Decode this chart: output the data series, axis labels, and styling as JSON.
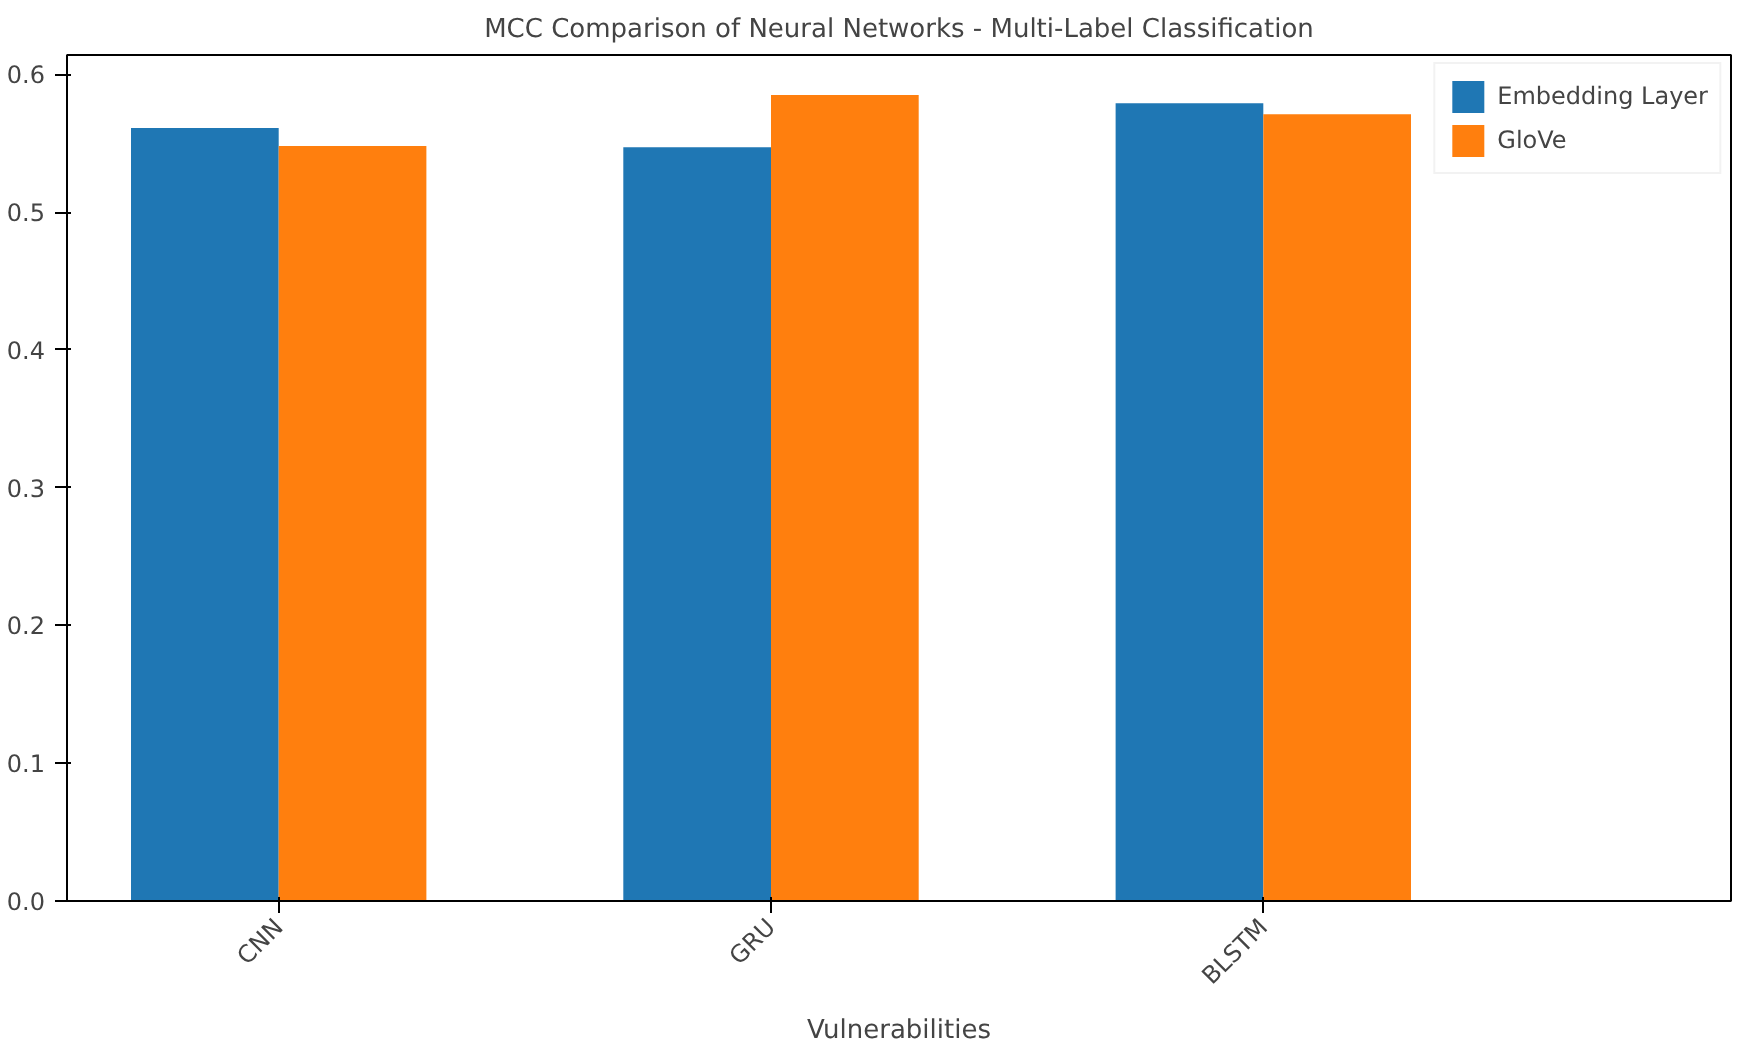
{
  "chart_data": {
    "type": "bar",
    "title": "MCC Comparison of Neural Networks - Multi-Label Classification",
    "xlabel": "Vulnerabilities",
    "categories": [
      "CNN",
      "GRU",
      "BLSTM"
    ],
    "series": [
      {
        "name": "Embedding Layer",
        "color": "#1f77b4",
        "values": [
          0.561,
          0.547,
          0.579
        ]
      },
      {
        "name": "GloVe",
        "color": "#ff7f0e",
        "values": [
          0.548,
          0.585,
          0.571
        ]
      }
    ],
    "ylim": [
      0,
      0.614
    ],
    "yticks": [
      {
        "value": 0,
        "label": "0.0"
      },
      0.1,
      0.2,
      0.3,
      0.4,
      0.5,
      0.6
    ],
    "grid": false,
    "legend": "top right"
  }
}
